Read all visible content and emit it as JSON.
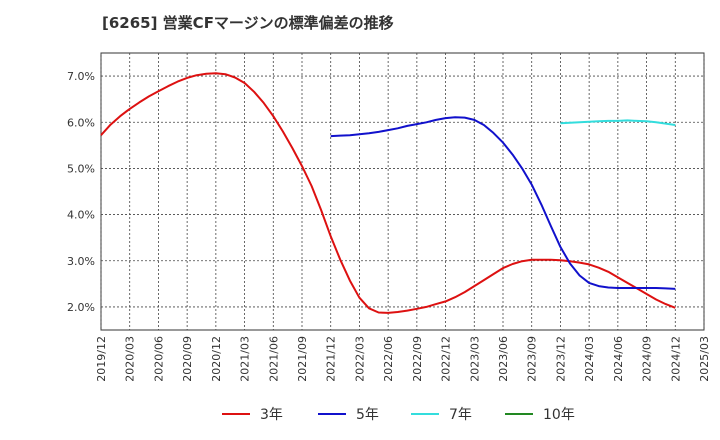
{
  "title": "[6265]  営業CFマージンの標準偏差の推移",
  "chart_data": {
    "type": "line",
    "xlabel": "",
    "ylabel": "",
    "ylim": [
      1.5,
      7.5
    ],
    "yticks": [
      2.0,
      3.0,
      4.0,
      5.0,
      6.0,
      7.0
    ],
    "ytick_labels": [
      "2.0%",
      "3.0%",
      "4.0%",
      "5.0%",
      "6.0%",
      "7.0%"
    ],
    "xticks": [
      "2019/12",
      "2020/03",
      "2020/06",
      "2020/09",
      "2020/12",
      "2021/03",
      "2021/06",
      "2021/09",
      "2021/12",
      "2022/03",
      "2022/06",
      "2022/09",
      "2022/12",
      "2023/03",
      "2023/06",
      "2023/09",
      "2023/12",
      "2024/03",
      "2024/06",
      "2024/09",
      "2024/12",
      "2025/03"
    ],
    "grid": true,
    "legend_position": "bottom",
    "series": [
      {
        "name": "3年",
        "color": "#dd1111",
        "points": [
          [
            "2019/12",
            5.72
          ],
          [
            "2020/01",
            5.95
          ],
          [
            "2020/02",
            6.13
          ],
          [
            "2020/03",
            6.29
          ],
          [
            "2020/04",
            6.43
          ],
          [
            "2020/05",
            6.56
          ],
          [
            "2020/06",
            6.67
          ],
          [
            "2020/07",
            6.78
          ],
          [
            "2020/08",
            6.88
          ],
          [
            "2020/09",
            6.96
          ],
          [
            "2020/10",
            7.02
          ],
          [
            "2020/11",
            7.05
          ],
          [
            "2020/12",
            7.06
          ],
          [
            "2021/01",
            7.04
          ],
          [
            "2021/02",
            6.97
          ],
          [
            "2021/03",
            6.85
          ],
          [
            "2021/04",
            6.66
          ],
          [
            "2021/05",
            6.42
          ],
          [
            "2021/06",
            6.13
          ],
          [
            "2021/07",
            5.8
          ],
          [
            "2021/08",
            5.44
          ],
          [
            "2021/09",
            5.05
          ],
          [
            "2021/10",
            4.62
          ],
          [
            "2021/11",
            4.1
          ],
          [
            "2021/12",
            3.53
          ],
          [
            "2022/01",
            3.02
          ],
          [
            "2022/02",
            2.57
          ],
          [
            "2022/03",
            2.2
          ],
          [
            "2022/04",
            1.97
          ],
          [
            "2022/05",
            1.88
          ],
          [
            "2022/06",
            1.87
          ],
          [
            "2022/07",
            1.89
          ],
          [
            "2022/08",
            1.92
          ],
          [
            "2022/09",
            1.96
          ],
          [
            "2022/10",
            2.0
          ],
          [
            "2022/11",
            2.06
          ],
          [
            "2022/12",
            2.12
          ],
          [
            "2023/01",
            2.21
          ],
          [
            "2023/02",
            2.32
          ],
          [
            "2023/03",
            2.45
          ],
          [
            "2023/04",
            2.58
          ],
          [
            "2023/05",
            2.71
          ],
          [
            "2023/06",
            2.84
          ],
          [
            "2023/07",
            2.93
          ],
          [
            "2023/08",
            2.99
          ],
          [
            "2023/09",
            3.02
          ],
          [
            "2023/10",
            3.02
          ],
          [
            "2023/11",
            3.02
          ],
          [
            "2023/12",
            3.01
          ],
          [
            "2024/01",
            2.99
          ],
          [
            "2024/02",
            2.96
          ],
          [
            "2024/03",
            2.92
          ],
          [
            "2024/04",
            2.85
          ],
          [
            "2024/05",
            2.76
          ],
          [
            "2024/06",
            2.64
          ],
          [
            "2024/07",
            2.52
          ],
          [
            "2024/08",
            2.4
          ],
          [
            "2024/09",
            2.28
          ],
          [
            "2024/10",
            2.16
          ],
          [
            "2024/11",
            2.06
          ],
          [
            "2024/12",
            1.98
          ]
        ]
      },
      {
        "name": "5年",
        "color": "#1111cc",
        "points": [
          [
            "2021/12",
            5.7
          ],
          [
            "2022/01",
            5.71
          ],
          [
            "2022/02",
            5.72
          ],
          [
            "2022/03",
            5.74
          ],
          [
            "2022/04",
            5.76
          ],
          [
            "2022/05",
            5.79
          ],
          [
            "2022/06",
            5.83
          ],
          [
            "2022/07",
            5.87
          ],
          [
            "2022/08",
            5.92
          ],
          [
            "2022/09",
            5.96
          ],
          [
            "2022/10",
            6.0
          ],
          [
            "2022/11",
            6.05
          ],
          [
            "2022/12",
            6.09
          ],
          [
            "2023/01",
            6.11
          ],
          [
            "2023/02",
            6.1
          ],
          [
            "2023/03",
            6.05
          ],
          [
            "2023/04",
            5.94
          ],
          [
            "2023/05",
            5.77
          ],
          [
            "2023/06",
            5.56
          ],
          [
            "2023/07",
            5.3
          ],
          [
            "2023/08",
            5.0
          ],
          [
            "2023/09",
            4.65
          ],
          [
            "2023/10",
            4.22
          ],
          [
            "2023/11",
            3.75
          ],
          [
            "2023/12",
            3.3
          ],
          [
            "2024/01",
            2.94
          ],
          [
            "2024/02",
            2.68
          ],
          [
            "2024/03",
            2.52
          ],
          [
            "2024/04",
            2.45
          ],
          [
            "2024/05",
            2.42
          ],
          [
            "2024/06",
            2.41
          ],
          [
            "2024/07",
            2.41
          ],
          [
            "2024/08",
            2.41
          ],
          [
            "2024/09",
            2.41
          ],
          [
            "2024/10",
            2.41
          ],
          [
            "2024/11",
            2.4
          ],
          [
            "2024/12",
            2.39
          ]
        ]
      },
      {
        "name": "7年",
        "color": "#33dddd",
        "points": [
          [
            "2023/12",
            5.98
          ],
          [
            "2024/01",
            5.99
          ],
          [
            "2024/02",
            6.0
          ],
          [
            "2024/03",
            6.01
          ],
          [
            "2024/04",
            6.02
          ],
          [
            "2024/05",
            6.03
          ],
          [
            "2024/06",
            6.03
          ],
          [
            "2024/07",
            6.04
          ],
          [
            "2024/08",
            6.03
          ],
          [
            "2024/09",
            6.02
          ],
          [
            "2024/10",
            6.0
          ],
          [
            "2024/11",
            5.97
          ],
          [
            "2024/12",
            5.94
          ]
        ]
      },
      {
        "name": "10年",
        "color": "#228822",
        "points": []
      }
    ]
  }
}
